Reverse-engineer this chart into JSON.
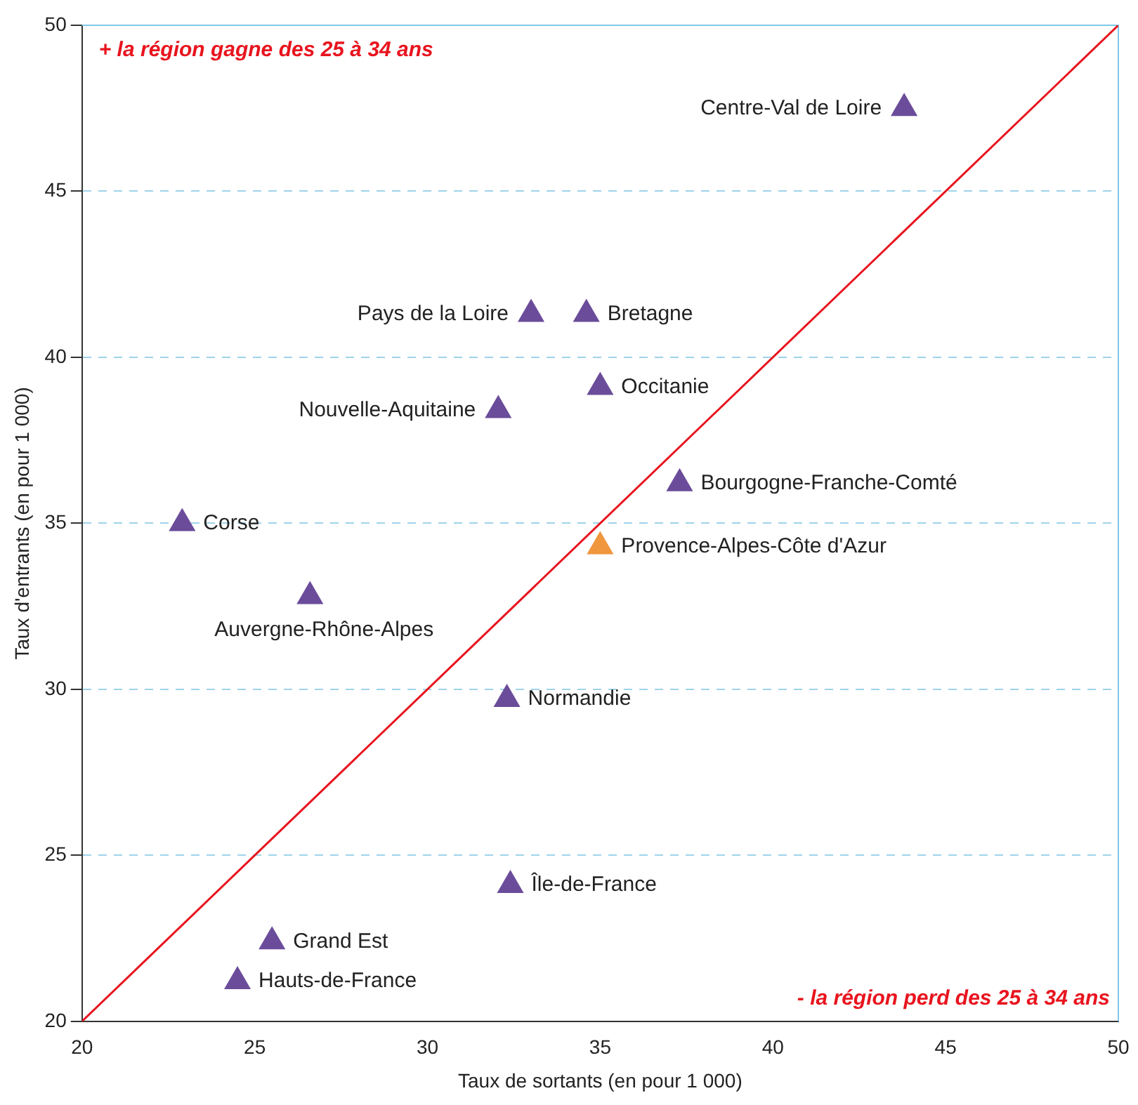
{
  "chart_data": {
    "type": "scatter",
    "xlabel": "Taux de sortants (en pour 1 000)",
    "ylabel": "Taux d'entrants (en pour 1 000)",
    "xlim": [
      20,
      50
    ],
    "xticks": [
      20,
      25,
      30,
      35,
      40,
      45,
      50
    ],
    "ylim": [
      20,
      50
    ],
    "yticks": [
      20,
      25,
      30,
      35,
      40,
      45,
      50
    ],
    "grid": "y",
    "legend": false,
    "marker": "triangle",
    "series": [
      {
        "x": [
          43.8,
          33.0,
          34.6,
          35.0,
          32.05,
          37.3,
          22.9,
          35.0,
          26.6,
          32.3,
          32.4,
          25.5,
          24.5
        ],
        "values": [
          47.5,
          41.3,
          41.3,
          39.1,
          38.4,
          36.2,
          35.0,
          34.3,
          32.8,
          29.7,
          24.1,
          22.4,
          21.2
        ],
        "colors": [
          "#6b4c9a",
          "#6b4c9a",
          "#6b4c9a",
          "#6b4c9a",
          "#6b4c9a",
          "#6b4c9a",
          "#6b4c9a",
          "#f0963c",
          "#6b4c9a",
          "#6b4c9a",
          "#6b4c9a",
          "#6b4c9a",
          "#6b4c9a"
        ]
      },
      {
        "type": "line",
        "x": [
          20,
          50
        ],
        "values": [
          20,
          50
        ],
        "color": "#e8141e",
        "marker": "none"
      }
    ],
    "annotations": [
      "+ la région gagne des 25 à 34 ans",
      "- la région perd des 25 à 34 ans",
      {
        "text": "Centre-Val de Loire",
        "x": 43.8,
        "y": 47.5
      },
      {
        "text": "Pays de la Loire",
        "x": 33.0,
        "y": 41.3
      },
      {
        "text": "Bretagne",
        "x": 34.6,
        "y": 41.3
      },
      {
        "text": "Occitanie",
        "x": 35.0,
        "y": 39.1
      },
      {
        "text": "Nouvelle-Aquitaine",
        "x": 32.05,
        "y": 38.4
      },
      {
        "text": "Bourgogne-Franche-Comté",
        "x": 37.3,
        "y": 36.2
      },
      {
        "text": "Corse",
        "x": 22.9,
        "y": 35.0
      },
      {
        "text": "Provence-Alpes-Côte d'Azur",
        "x": 35.0,
        "y": 34.3
      },
      {
        "text": "Auvergne-Rhône-Alpes",
        "x": 26.6,
        "y": 32.8
      },
      {
        "text": "Normandie",
        "x": 32.3,
        "y": 29.7
      },
      {
        "text": "Île-de-France",
        "x": 32.4,
        "y": 24.1
      },
      {
        "text": "Grand Est",
        "x": 25.5,
        "y": 22.4
      },
      {
        "text": "Hauts-de-France",
        "x": 24.5,
        "y": 21.2
      }
    ]
  }
}
